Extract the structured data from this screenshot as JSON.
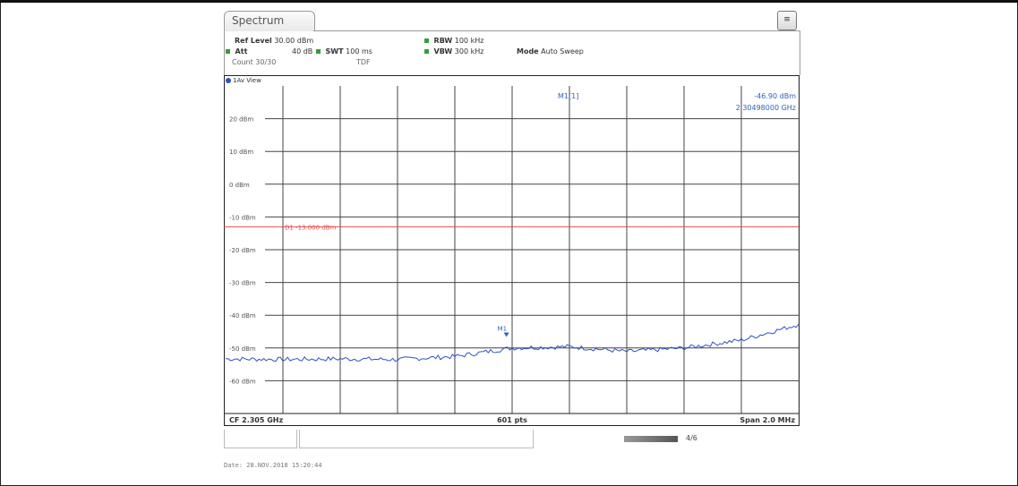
{
  "window": {
    "tab_label": "Spectrum",
    "menu_icon": "window-menu-icon"
  },
  "settings": {
    "ref_level_label": "Ref Level",
    "ref_level_value": "30.00 dBm",
    "att_label": "Att",
    "att_value": "40 dB",
    "swt_label": "SWT",
    "swt_value": "100 ms",
    "rbw_label": "RBW",
    "rbw_value": "100 kHz",
    "vbw_label": "VBW",
    "vbw_value": "300 kHz",
    "mode_label": "Mode",
    "mode_value": "Auto Sweep",
    "count_text": "Count 30/30",
    "tdf_text": "TDF"
  },
  "view_label": "1Av View",
  "marker": {
    "name": "M1[1]",
    "level": "-46.90 dBm",
    "freq": "2.30498000 GHz",
    "tag": "M1"
  },
  "footer": {
    "left": "CF 2.305 GHz",
    "center": "601 pts",
    "right": "Span 2.0 MHz"
  },
  "status_tag": "4/6",
  "date_text": "Date: 28.NOV.2018  15:20:44",
  "chart_data": {
    "type": "line",
    "ylim": [
      -70,
      30
    ],
    "y_ticks": [
      20,
      10,
      0,
      -10,
      -20,
      -30,
      -40,
      -50,
      -60
    ],
    "y_tick_labels": [
      "20 dBm",
      "10 dBm",
      "0 dBm",
      "-10 dBm",
      "-20 dBm",
      "-30 dBm",
      "-40 dBm",
      "-50 dBm",
      "-60 dBm"
    ],
    "x_divisions": 10,
    "x_range_mhz": [
      2304.0,
      2306.0
    ],
    "grid": true,
    "limit_line": {
      "label": "D1  -13.000 dBm",
      "value": -13,
      "color": "#e05050"
    },
    "series": [
      {
        "color": "#3050c8",
        "x": [
          2304.0,
          2304.2,
          2304.4,
          2304.6,
          2304.8,
          2305.0,
          2305.2,
          2305.4,
          2305.6,
          2305.8,
          2306.0
        ],
        "y": [
          -53.3,
          -53.5,
          -53.3,
          -53.5,
          -52.6,
          -50.0,
          -49.6,
          -51.1,
          -50.0,
          -47.6,
          -42.8
        ]
      }
    ],
    "marker_x": 2304.98,
    "marker_y": -46.9
  }
}
